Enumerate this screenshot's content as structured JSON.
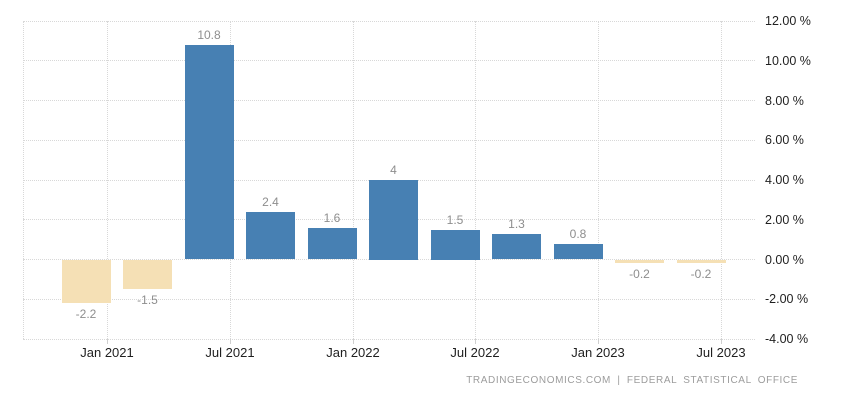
{
  "chart_data": {
    "type": "bar",
    "title": "",
    "xlabel": "",
    "ylabel": "",
    "values": [
      -2.2,
      -1.5,
      10.8,
      2.4,
      1.6,
      4,
      1.5,
      1.3,
      0.8,
      -0.2,
      -0.2
    ],
    "bar_labels": [
      "-2.2",
      "-1.5",
      "10.8",
      "2.4",
      "1.6",
      "4",
      "1.5",
      "1.3",
      "0.8",
      "-0.2",
      "-0.2"
    ],
    "x_tick_labels": [
      "Jan 2021",
      "Jul 2021",
      "Jan 2022",
      "Jul 2022",
      "Jan 2023",
      "Jul 2023"
    ],
    "y_tick_labels": [
      "12.00 %",
      "10.00 %",
      "8.00 %",
      "6.00 %",
      "4.00 %",
      "2.00 %",
      "0.00 %",
      "-2.00 %",
      "-4.00 %"
    ],
    "y_tick_values": [
      12,
      10,
      8,
      6,
      4,
      2,
      0,
      -2,
      -4
    ],
    "ylim": [
      -4,
      12
    ],
    "grid": "dotted",
    "legend": "none",
    "colors": {
      "positive_bar": "#4780b3",
      "negative_bar": "#f5e0b5",
      "value_label": "#8e8e8e",
      "axis_label": "#1f1f1f",
      "gridline": "#d8d8d8",
      "background": "#ffffff"
    }
  },
  "footer": {
    "attribution": "TRADINGECONOMICS.COM | FEDERAL STATISTICAL OFFICE"
  }
}
